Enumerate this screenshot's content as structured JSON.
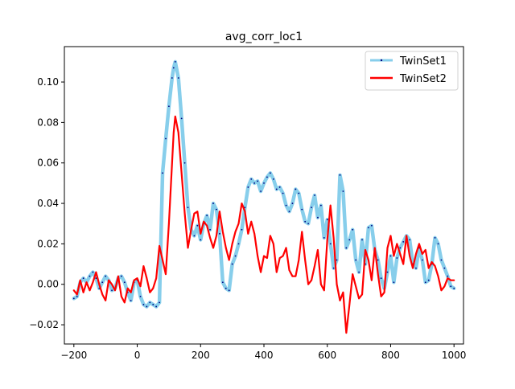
{
  "chart_data": {
    "type": "line",
    "title": "avg_corr_loc1",
    "xlabel": "",
    "ylabel": "",
    "xlim": [
      -230,
      1030
    ],
    "ylim": [
      -0.0295,
      0.1175
    ],
    "xticks": [
      -200,
      0,
      200,
      400,
      600,
      800,
      1000
    ],
    "yticks": [
      -0.02,
      0.0,
      0.02,
      0.04,
      0.06,
      0.08,
      0.1
    ],
    "ytick_labels": [
      "−0.02",
      "0.00",
      "0.02",
      "0.04",
      "0.06",
      "0.08",
      "0.10"
    ],
    "grid": false,
    "legend_position": "top-right",
    "series": [
      {
        "name": "TwinSet1",
        "color": "#87ceeb",
        "marker_color": "#000080",
        "style": "thick light-blue line with tiny dark-blue markers",
        "x": [
          -200,
          -190,
          -180,
          -170,
          -160,
          -150,
          -140,
          -130,
          -120,
          -110,
          -100,
          -90,
          -80,
          -70,
          -60,
          -50,
          -40,
          -30,
          -20,
          -10,
          0,
          10,
          20,
          30,
          40,
          50,
          60,
          70,
          80,
          90,
          100,
          110,
          115,
          120,
          130,
          140,
          150,
          160,
          170,
          180,
          190,
          200,
          210,
          220,
          230,
          240,
          250,
          260,
          270,
          280,
          290,
          300,
          310,
          320,
          330,
          340,
          350,
          360,
          370,
          380,
          390,
          400,
          410,
          420,
          430,
          440,
          450,
          460,
          470,
          480,
          490,
          500,
          510,
          520,
          530,
          540,
          550,
          560,
          570,
          580,
          590,
          600,
          610,
          620,
          630,
          640,
          650,
          660,
          670,
          680,
          690,
          700,
          710,
          720,
          730,
          740,
          750,
          760,
          770,
          780,
          790,
          800,
          810,
          820,
          830,
          840,
          850,
          860,
          870,
          880,
          890,
          900,
          910,
          920,
          930,
          940,
          950,
          960,
          970,
          980,
          990,
          1000
        ],
        "y": [
          -0.007,
          -0.006,
          0.001,
          0.003,
          0.001,
          0.004,
          0.006,
          0.003,
          -0.002,
          0.001,
          0.004,
          0.002,
          -0.003,
          -0.002,
          0.003,
          0.004,
          0.001,
          -0.004,
          -0.008,
          0.001,
          0.002,
          -0.006,
          -0.01,
          -0.011,
          -0.009,
          -0.01,
          -0.011,
          -0.009,
          0.055,
          0.072,
          0.088,
          0.102,
          0.107,
          0.11,
          0.102,
          0.082,
          0.06,
          0.038,
          0.027,
          0.024,
          0.029,
          0.022,
          0.03,
          0.034,
          0.027,
          0.04,
          0.037,
          0.025,
          0.001,
          -0.002,
          -0.003,
          0.01,
          0.014,
          0.02,
          0.027,
          0.038,
          0.048,
          0.052,
          0.05,
          0.051,
          0.046,
          0.05,
          0.053,
          0.055,
          0.052,
          0.047,
          0.048,
          0.045,
          0.039,
          0.036,
          0.04,
          0.047,
          0.045,
          0.037,
          0.031,
          0.03,
          0.038,
          0.044,
          0.033,
          0.039,
          0.023,
          0.032,
          0.02,
          0.008,
          0.012,
          0.054,
          0.046,
          0.018,
          0.022,
          0.027,
          0.012,
          0.006,
          0.022,
          0.01,
          0.028,
          0.029,
          0.017,
          0.012,
          0.003,
          -0.002,
          0.006,
          0.014,
          0.001,
          0.013,
          0.018,
          0.021,
          0.024,
          0.022,
          0.01,
          0.008,
          0.018,
          0.012,
          0.001,
          0.002,
          0.01,
          0.023,
          0.02,
          0.012,
          0.008,
          0.004,
          -0.001,
          -0.002
        ]
      },
      {
        "name": "TwinSet2",
        "color": "#ff0000",
        "style": "solid red line",
        "x": [
          -200,
          -190,
          -180,
          -170,
          -160,
          -150,
          -140,
          -130,
          -120,
          -110,
          -100,
          -90,
          -80,
          -70,
          -60,
          -50,
          -40,
          -30,
          -20,
          -10,
          0,
          10,
          20,
          30,
          40,
          50,
          60,
          70,
          80,
          90,
          100,
          110,
          115,
          120,
          130,
          140,
          150,
          160,
          170,
          180,
          190,
          200,
          210,
          220,
          230,
          240,
          250,
          260,
          270,
          280,
          290,
          300,
          310,
          320,
          330,
          340,
          350,
          360,
          370,
          380,
          390,
          400,
          410,
          420,
          430,
          440,
          450,
          460,
          470,
          480,
          490,
          500,
          510,
          520,
          530,
          540,
          550,
          560,
          570,
          580,
          590,
          600,
          610,
          620,
          630,
          640,
          650,
          660,
          670,
          680,
          690,
          700,
          710,
          720,
          730,
          740,
          750,
          760,
          770,
          780,
          790,
          800,
          810,
          820,
          830,
          840,
          850,
          860,
          870,
          880,
          890,
          900,
          910,
          920,
          930,
          940,
          950,
          960,
          970,
          980,
          990,
          1000
        ],
        "y": [
          -0.003,
          -0.005,
          0.002,
          -0.004,
          0.001,
          -0.003,
          0.001,
          0.006,
          0.0,
          -0.005,
          -0.008,
          0.002,
          0.0,
          -0.003,
          0.004,
          -0.006,
          -0.009,
          -0.002,
          -0.004,
          0.002,
          0.003,
          -0.001,
          0.009,
          0.003,
          -0.004,
          -0.002,
          0.003,
          0.019,
          0.012,
          0.005,
          0.03,
          0.06,
          0.075,
          0.083,
          0.075,
          0.055,
          0.035,
          0.018,
          0.027,
          0.035,
          0.036,
          0.025,
          0.031,
          0.029,
          0.023,
          0.018,
          0.024,
          0.036,
          0.026,
          0.018,
          0.012,
          0.02,
          0.026,
          0.03,
          0.04,
          0.036,
          0.025,
          0.031,
          0.025,
          0.014,
          0.006,
          0.014,
          0.013,
          0.024,
          0.02,
          0.006,
          0.013,
          0.014,
          0.018,
          0.007,
          0.004,
          0.004,
          0.012,
          0.026,
          0.012,
          0.0,
          0.002,
          0.009,
          0.017,
          0.0,
          -0.003,
          0.022,
          0.039,
          0.023,
          0.0,
          -0.008,
          -0.004,
          -0.024,
          -0.01,
          0.005,
          -0.001,
          -0.007,
          -0.005,
          0.017,
          0.012,
          0.002,
          0.018,
          0.005,
          -0.006,
          -0.004,
          0.018,
          0.024,
          0.014,
          0.02,
          0.015,
          0.01,
          0.024,
          0.014,
          0.008,
          0.015,
          0.02,
          0.015,
          0.017,
          0.008,
          0.011,
          0.009,
          0.004,
          -0.003,
          -0.001,
          0.003,
          0.002,
          0.002
        ]
      }
    ]
  }
}
